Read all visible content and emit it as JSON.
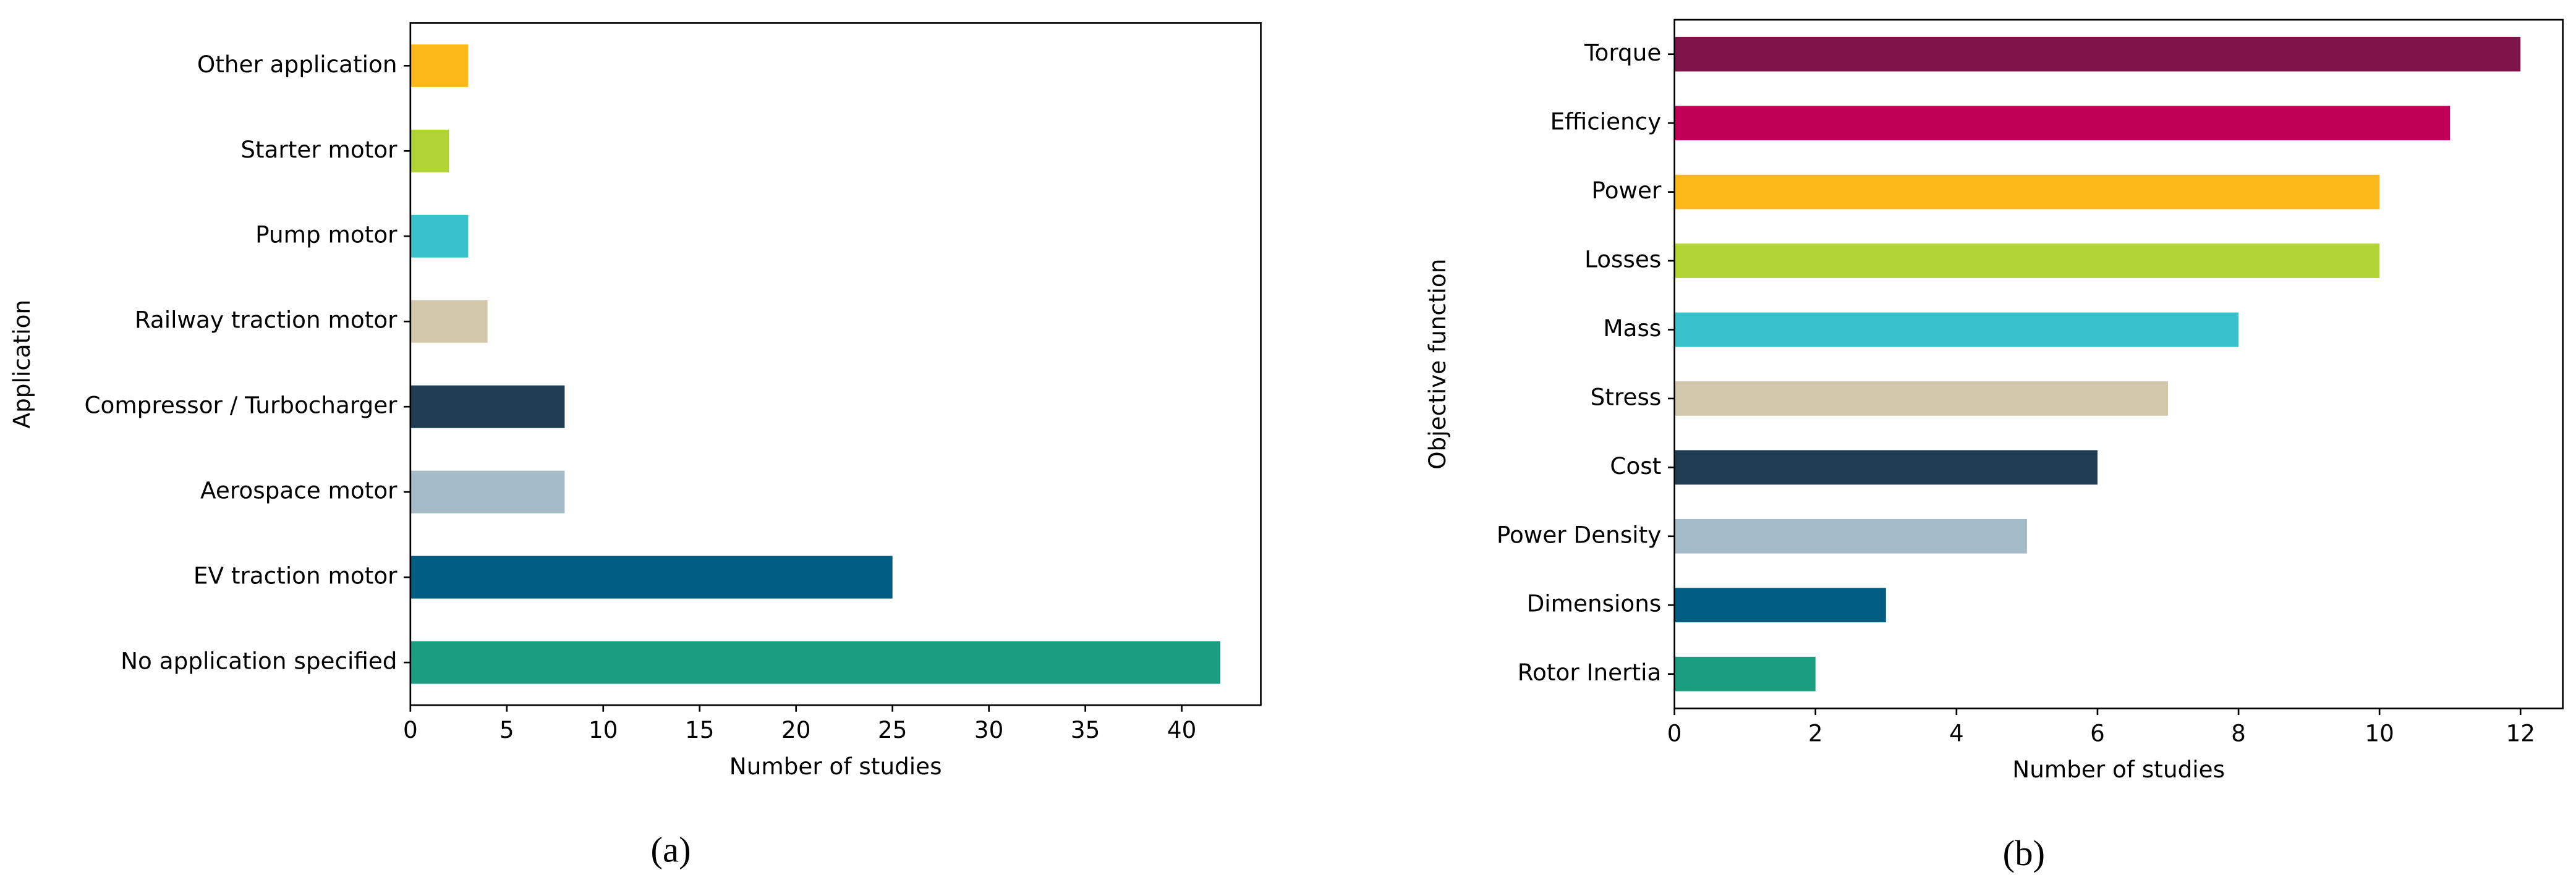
{
  "chart_data": [
    {
      "type": "barh",
      "caption": "(a)",
      "xlabel": "Number of studies",
      "ylabel": "Application",
      "categories": [
        "Other application",
        "Starter motor",
        "Pump motor",
        "Railway traction motor",
        "Compressor / Turbocharger",
        "Aerospace motor",
        "EV traction motor",
        "No application specified"
      ],
      "values": [
        3,
        2,
        3,
        4,
        8,
        8,
        25,
        42
      ],
      "colors": [
        "#fbb818",
        "#b1d435",
        "#3ac2cc",
        "#d4c8ac",
        "#1e3d52",
        "#a6bbc8",
        "#005c80",
        "#1b9e80"
      ],
      "xlim": [
        0,
        44.1
      ],
      "xticks": [
        0,
        5,
        10,
        15,
        20,
        25,
        30,
        35,
        40
      ]
    },
    {
      "type": "barh",
      "caption": "(b)",
      "xlabel": "Number of studies",
      "ylabel": "Objective function",
      "categories": [
        "Torque",
        "Efficiency",
        "Power",
        "Losses",
        "Mass",
        "Stress",
        "Cost",
        "Power Density",
        "Dimensions",
        "Rotor Inertia"
      ],
      "values": [
        12,
        11,
        10,
        10,
        8,
        7,
        6,
        5,
        3,
        2
      ],
      "colors": [
        "#7f144a",
        "#bf0056",
        "#fbb818",
        "#b1d435",
        "#3ac2cc",
        "#d4c8ac",
        "#1e3d52",
        "#a6bbc8",
        "#005c80",
        "#1b9e80"
      ],
      "xlim": [
        0,
        12.6
      ],
      "xticks": [
        0,
        2,
        4,
        6,
        8,
        10,
        12
      ]
    }
  ]
}
